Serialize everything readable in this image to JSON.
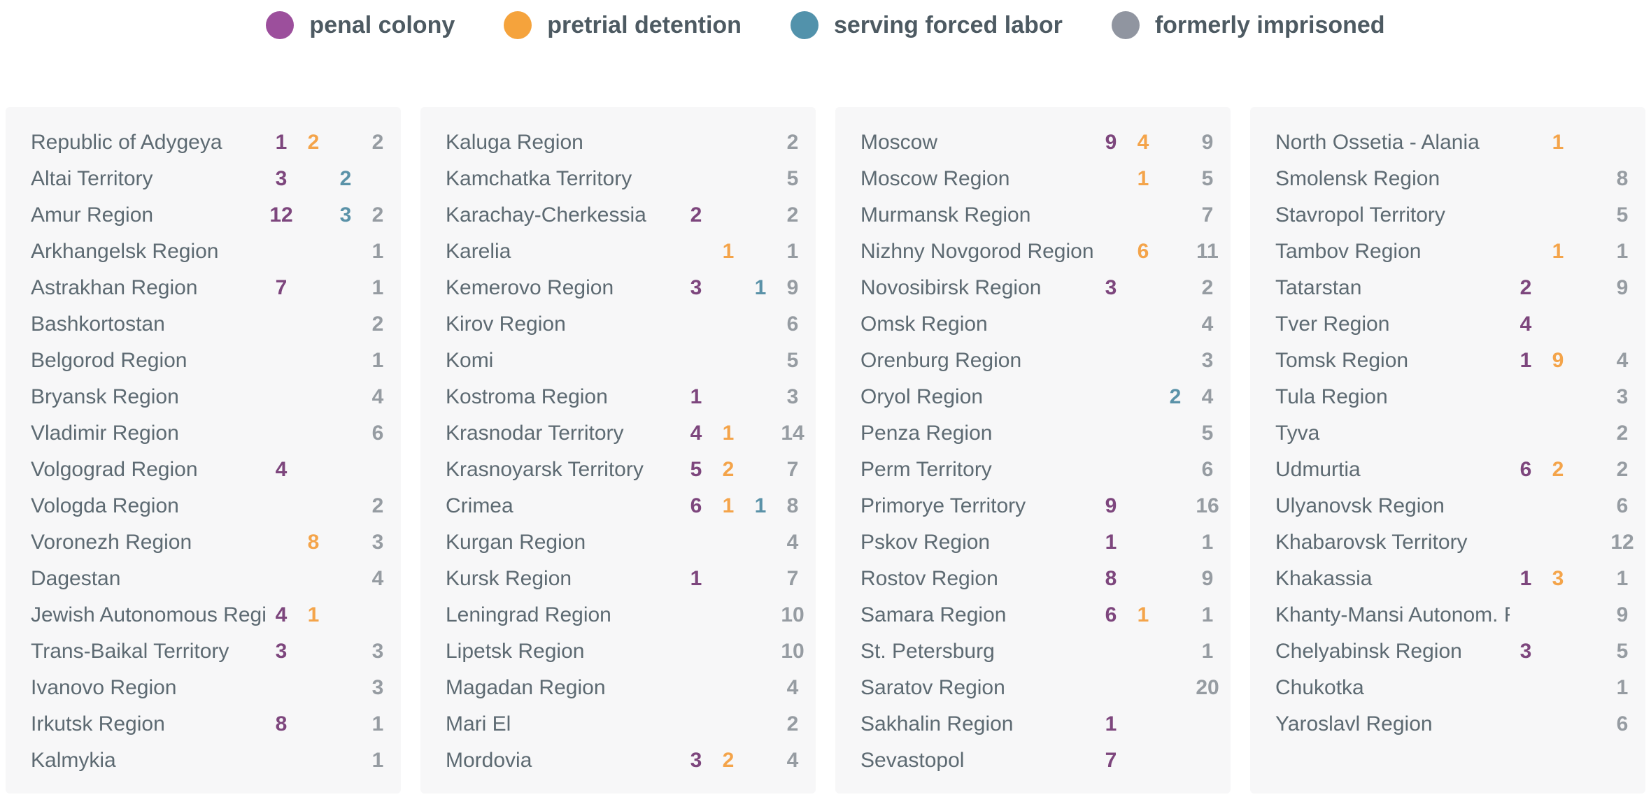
{
  "legend": {
    "items": [
      {
        "label": "penal colony",
        "color": "#9c4f9c",
        "icon": "penal-colony-dot-icon"
      },
      {
        "label": "pretrial detention",
        "color": "#f5a33c",
        "icon": "pretrial-detention-dot-icon"
      },
      {
        "label": "serving forced labor",
        "color": "#5292ab",
        "icon": "serving-forced-labor-dot-icon"
      },
      {
        "label": "formerly imprisoned",
        "color": "#9095a0",
        "icon": "formerly-imprisoned-dot-icon"
      }
    ]
  },
  "colors": {
    "penal": "#7d467d",
    "pretrial": "#f4a44a",
    "forced": "#5a92a8",
    "former": "#969ca2",
    "panel_bg": "#f7f7f8",
    "name_text": "#5d6a72",
    "legend_text": "#4d5a62"
  },
  "chart_data": {
    "type": "table",
    "title": "",
    "value_fields": [
      "penal colony",
      "pretrial detention",
      "serving forced labor",
      "formerly imprisoned"
    ],
    "legend_position": "top-center",
    "columns": [
      {
        "rows": [
          {
            "name": "Republic of Adygeya",
            "penal": "1",
            "pretrial": "2",
            "former": "2"
          },
          {
            "name": "Altai Territory",
            "penal": "3",
            "forced": "2"
          },
          {
            "name": "Amur Region",
            "penal": "12",
            "forced": "3",
            "former": "2"
          },
          {
            "name": "Arkhangelsk Region",
            "former": "1"
          },
          {
            "name": "Astrakhan Region",
            "penal": "7",
            "former": "1"
          },
          {
            "name": "Bashkortostan",
            "former": "2"
          },
          {
            "name": "Belgorod Region",
            "former": "1"
          },
          {
            "name": "Bryansk Region",
            "former": "4"
          },
          {
            "name": "Vladimir Region",
            "former": "6"
          },
          {
            "name": "Volgograd Region",
            "penal": "4"
          },
          {
            "name": "Vologda Region",
            "former": "2"
          },
          {
            "name": "Voronezh Region",
            "pretrial": "8",
            "former": "3"
          },
          {
            "name": "Dagestan",
            "former": "4"
          },
          {
            "name": "Jewish Autonomous Region",
            "penal": "4",
            "pretrial": "1"
          },
          {
            "name": "Trans-Baikal Territory",
            "penal": "3",
            "former": "3"
          },
          {
            "name": "Ivanovo Region",
            "former": "3"
          },
          {
            "name": "Irkutsk Region",
            "penal": "8",
            "former": "1"
          },
          {
            "name": "Kalmykia",
            "former": "1"
          }
        ]
      },
      {
        "rows": [
          {
            "name": "Kaluga Region",
            "former": "2"
          },
          {
            "name": "Kamchatka Territory",
            "former": "5"
          },
          {
            "name": "Karachay-Cherkessia",
            "penal": "2",
            "former": "2"
          },
          {
            "name": "Karelia",
            "pretrial": "1",
            "former": "1"
          },
          {
            "name": "Kemerovo Region",
            "penal": "3",
            "forced": "1",
            "former": "9"
          },
          {
            "name": "Kirov Region",
            "former": "6"
          },
          {
            "name": "Komi",
            "former": "5"
          },
          {
            "name": "Kostroma Region",
            "penal": "1",
            "former": "3"
          },
          {
            "name": "Krasnodar Territory",
            "penal": "4",
            "pretrial": "1",
            "former": "14"
          },
          {
            "name": "Krasnoyarsk Territory",
            "penal": "5",
            "pretrial": "2",
            "former": "7"
          },
          {
            "name": "Crimea",
            "penal": "6",
            "pretrial": "1",
            "forced": "1",
            "former": "8"
          },
          {
            "name": "Kurgan Region",
            "former": "4"
          },
          {
            "name": "Kursk Region",
            "penal": "1",
            "former": "7"
          },
          {
            "name": "Leningrad Region",
            "former": "10"
          },
          {
            "name": "Lipetsk Region",
            "former": "10"
          },
          {
            "name": "Magadan Region",
            "former": "4"
          },
          {
            "name": "Mari El",
            "former": "2"
          },
          {
            "name": "Mordovia",
            "penal": "3",
            "pretrial": "2",
            "former": "4"
          }
        ]
      },
      {
        "rows": [
          {
            "name": "Moscow",
            "penal": "9",
            "pretrial": "4",
            "former": "9"
          },
          {
            "name": "Moscow Region",
            "pretrial": "1",
            "former": "5"
          },
          {
            "name": "Murmansk Region",
            "former": "7"
          },
          {
            "name": "Nizhny Novgorod Region",
            "pretrial": "6",
            "former": "11"
          },
          {
            "name": "Novosibirsk Region",
            "penal": "3",
            "former": "2"
          },
          {
            "name": "Omsk Region",
            "former": "4"
          },
          {
            "name": "Orenburg Region",
            "former": "3"
          },
          {
            "name": "Oryol Region",
            "forced": "2",
            "former": "4"
          },
          {
            "name": "Penza Region",
            "former": "5"
          },
          {
            "name": "Perm Territory",
            "former": "6"
          },
          {
            "name": "Primorye Territory",
            "penal": "9",
            "former": "16"
          },
          {
            "name": "Pskov Region",
            "penal": "1",
            "former": "1"
          },
          {
            "name": "Rostov Region",
            "penal": "8",
            "former": "9"
          },
          {
            "name": "Samara Region",
            "penal": "6",
            "pretrial": "1",
            "former": "1"
          },
          {
            "name": "St. Petersburg",
            "former": "1"
          },
          {
            "name": "Saratov Region",
            "former": "20"
          },
          {
            "name": "Sakhalin Region",
            "penal": "1"
          },
          {
            "name": "Sevastopol",
            "penal": "7"
          }
        ]
      },
      {
        "rows": [
          {
            "name": "North Ossetia - Alania",
            "pretrial": "1"
          },
          {
            "name": "Smolensk Region",
            "former": "8"
          },
          {
            "name": "Stavropol Territory",
            "former": "5"
          },
          {
            "name": "Tambov Region",
            "pretrial": "1",
            "former": "1"
          },
          {
            "name": "Tatarstan",
            "penal": "2",
            "former": "9"
          },
          {
            "name": "Tver Region",
            "penal": "4"
          },
          {
            "name": "Tomsk Region",
            "penal": "1",
            "pretrial": "9",
            "former": "4"
          },
          {
            "name": "Tula Region",
            "former": "3"
          },
          {
            "name": "Tyva",
            "former": "2"
          },
          {
            "name": "Udmurtia",
            "penal": "6",
            "pretrial": "2",
            "former": "2"
          },
          {
            "name": "Ulyanovsk Region",
            "former": "6"
          },
          {
            "name": "Khabarovsk Territory",
            "former": "12"
          },
          {
            "name": "Khakassia",
            "penal": "1",
            "pretrial": "3",
            "former": "1"
          },
          {
            "name": "Khanty-Mansi Autonom. Region",
            "former": "9"
          },
          {
            "name": "Chelyabinsk Region",
            "penal": "3",
            "former": "5"
          },
          {
            "name": "Chukotka",
            "former": "1"
          },
          {
            "name": "Yaroslavl Region",
            "former": "6"
          }
        ]
      }
    ]
  }
}
